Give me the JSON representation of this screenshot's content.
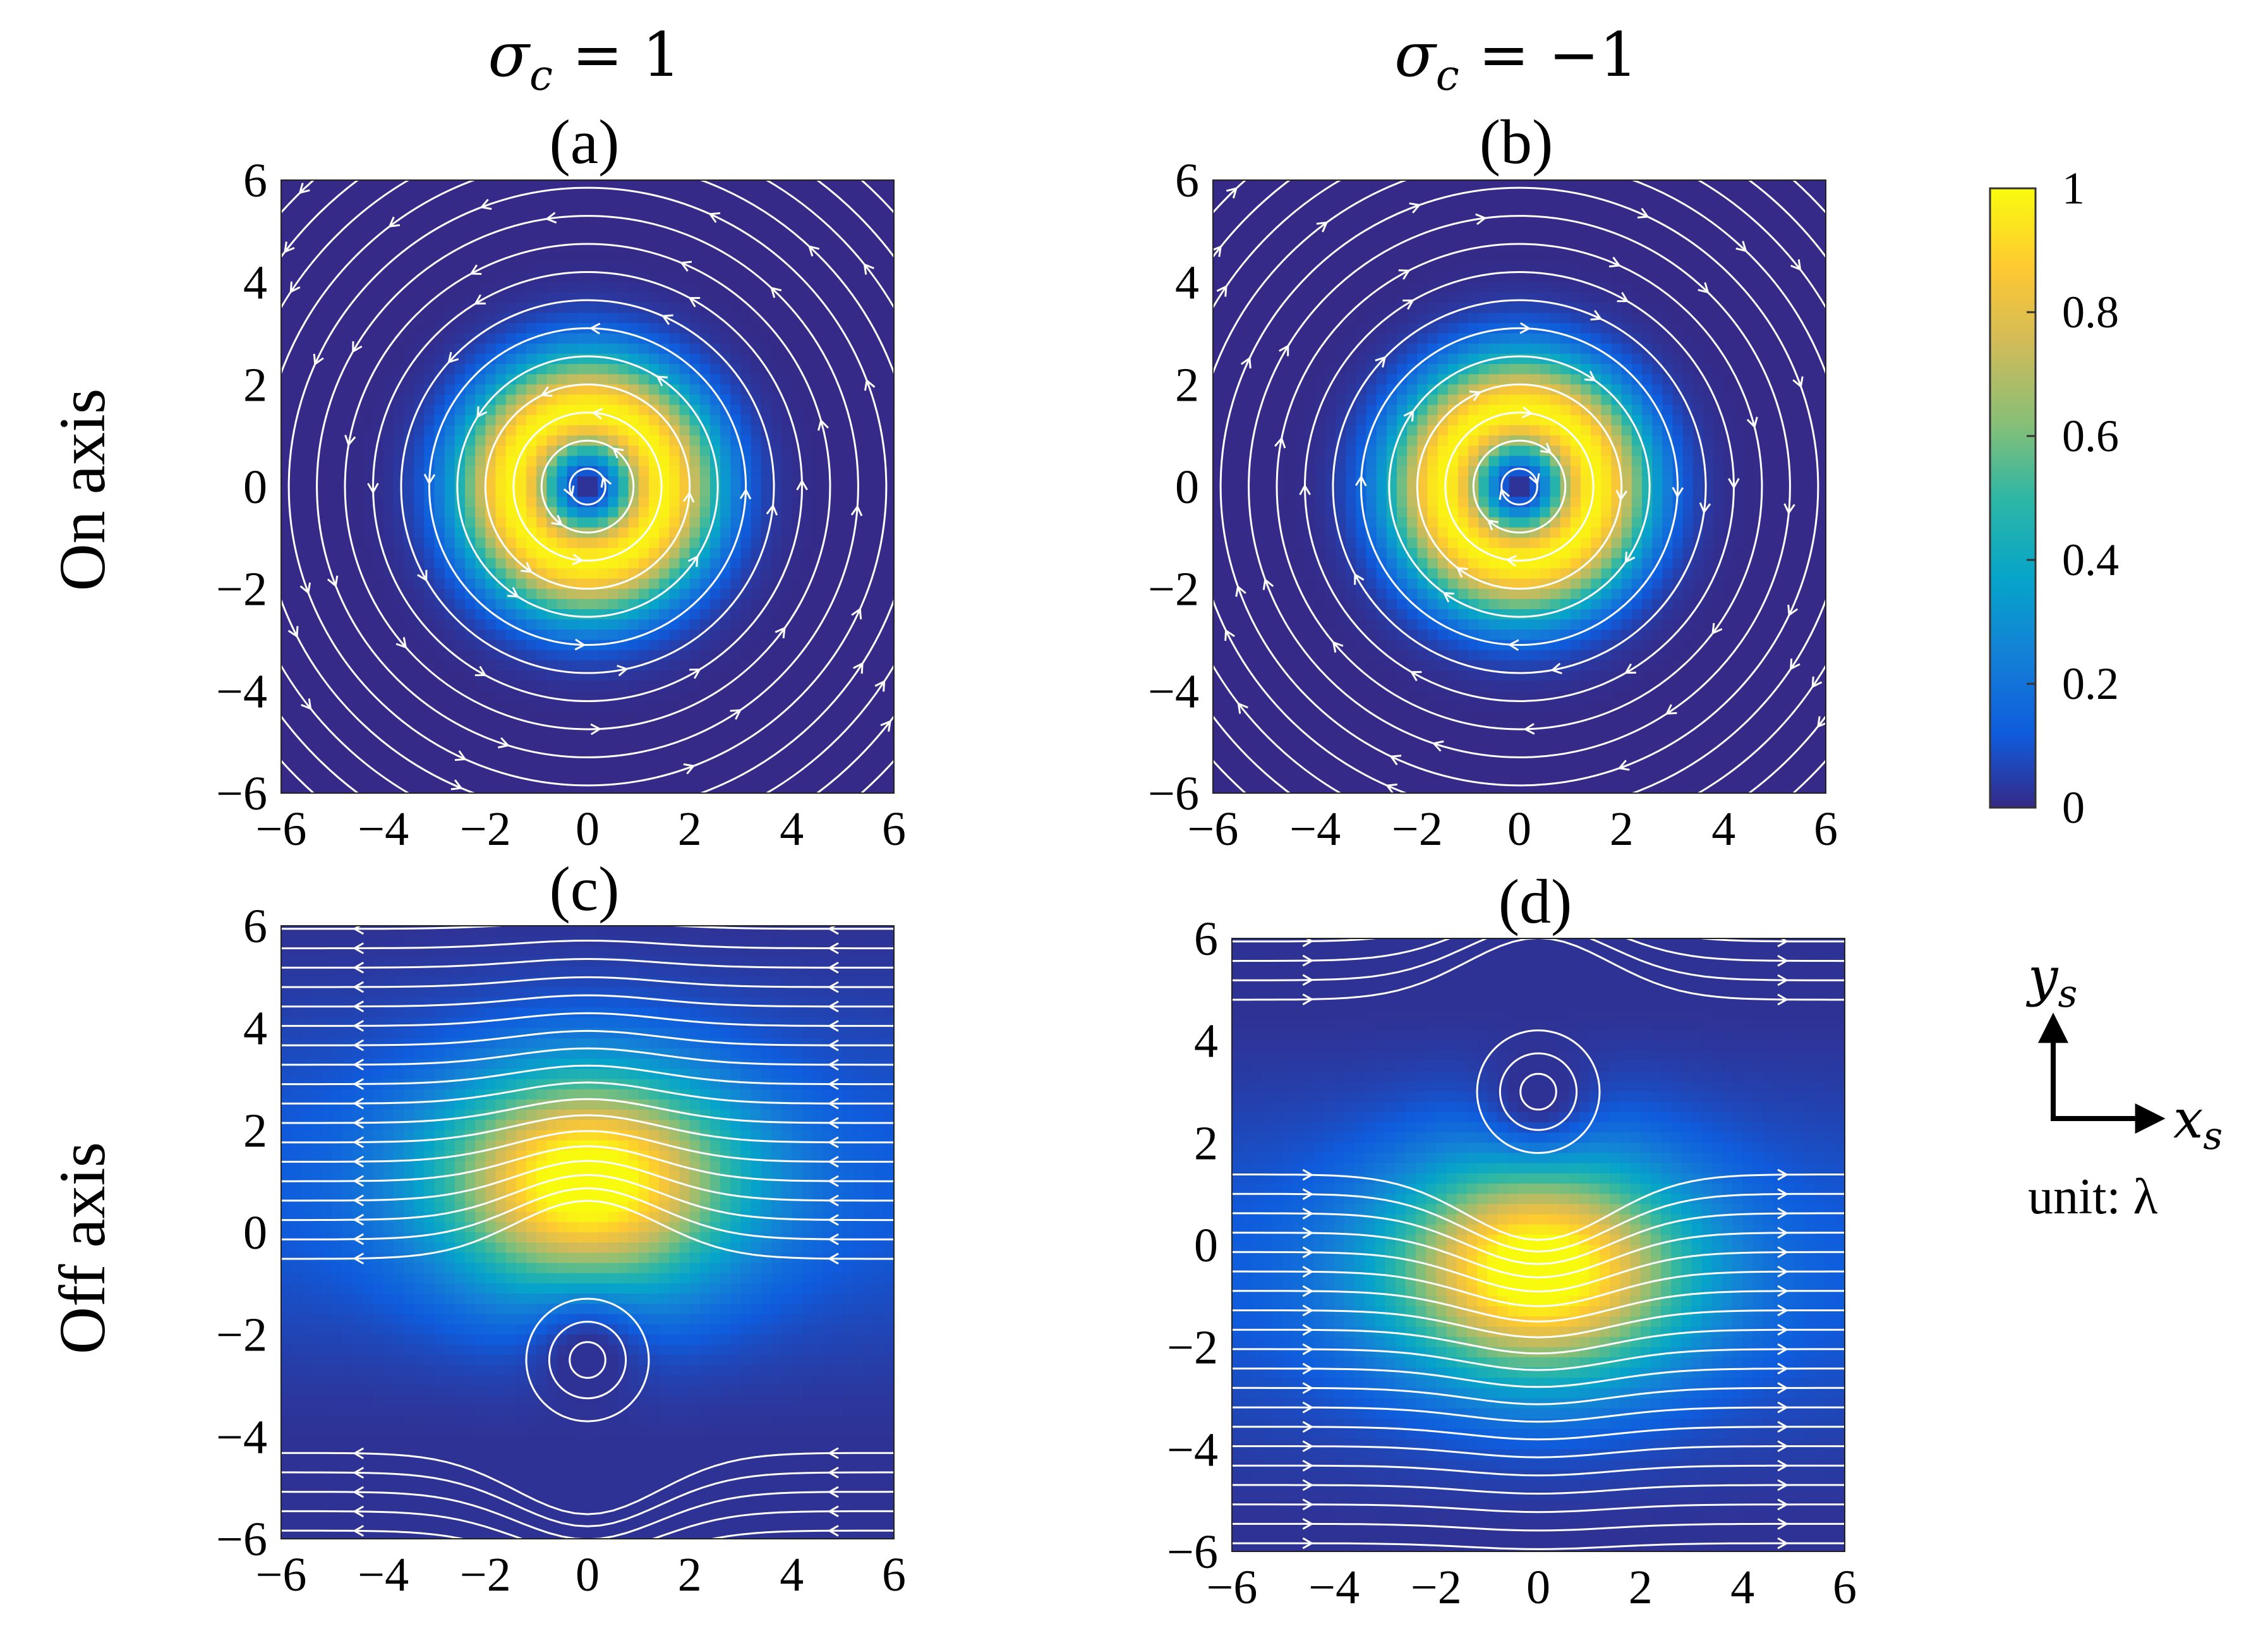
{
  "column_headers": [
    "σ c = 1",
    "σ c = −1"
  ],
  "column_header_parts": [
    {
      "symbol": "σ",
      "sub": "c",
      "rest": " = 1"
    },
    {
      "symbol": "σ",
      "sub": "c",
      "rest": " = −1"
    }
  ],
  "row_labels": [
    "On axis",
    "Off axis"
  ],
  "colorbar": {
    "range": [
      0,
      1
    ],
    "ticks": [
      "0",
      "0.2",
      "0.4",
      "0.6",
      "0.8",
      "1"
    ],
    "colormap": "parula",
    "colors": [
      "#352a87",
      "#0f5cdd",
      "#1481d6",
      "#06a4ca",
      "#2eb7a4",
      "#87bf77",
      "#d1bb59",
      "#fec832",
      "#f9fb0e"
    ]
  },
  "axis_legend": {
    "y_label": "y",
    "y_sub": "s",
    "x_label": "x",
    "x_sub": "s",
    "unit_text": "unit: λ"
  },
  "chart_data": [
    {
      "type": "heatmap",
      "panel": "(a)",
      "xlim": [
        -6,
        6
      ],
      "ylim": [
        -6,
        6
      ],
      "xticks": [
        "−6",
        "−4",
        "−2",
        "0",
        "2",
        "4",
        "6"
      ],
      "yticks": [
        "−6",
        "−4",
        "−2",
        "0",
        "2",
        "4",
        "6"
      ],
      "field": "ring",
      "intensity_peak_radius": 1.5,
      "intensity_max": 1,
      "vortex_centers": [
        [
          0,
          0
        ]
      ],
      "streamlines": "concentric circles",
      "circulation": "counterclockwise"
    },
    {
      "type": "heatmap",
      "panel": "(b)",
      "xlim": [
        -6,
        6
      ],
      "ylim": [
        -6,
        6
      ],
      "xticks": [
        "−6",
        "−4",
        "−2",
        "0",
        "2",
        "4",
        "6"
      ],
      "yticks": [
        "−6",
        "−4",
        "−2",
        "0",
        "2",
        "4",
        "6"
      ],
      "field": "ring",
      "intensity_peak_radius": 1.5,
      "intensity_max": 1,
      "vortex_centers": [
        [
          0,
          0
        ]
      ],
      "streamlines": "concentric circles",
      "circulation": "clockwise"
    },
    {
      "type": "heatmap",
      "panel": "(c)",
      "xlim": [
        -6,
        6
      ],
      "ylim": [
        -6,
        6
      ],
      "xticks": [
        "−6",
        "−4",
        "−2",
        "0",
        "2",
        "4",
        "6"
      ],
      "yticks": [
        "−6",
        "−4",
        "−2",
        "0",
        "2",
        "4",
        "6"
      ],
      "field": "off-axis",
      "intensity_peak_center": [
        0,
        1
      ],
      "intensity_max": 1,
      "vortex_centers": [
        [
          0,
          -2.5
        ]
      ],
      "streamlines": "horizontal flow with vortex",
      "flow_direction": "leftward"
    },
    {
      "type": "heatmap",
      "panel": "(d)",
      "xlim": [
        -6,
        6
      ],
      "ylim": [
        -6,
        6
      ],
      "xticks": [
        "−6",
        "−4",
        "−2",
        "0",
        "2",
        "4",
        "6"
      ],
      "yticks": [
        "−6",
        "−4",
        "−2",
        "0",
        "2",
        "4",
        "6"
      ],
      "field": "off-axis",
      "intensity_peak_center": [
        0,
        -0.5
      ],
      "intensity_max": 1,
      "vortex_centers": [
        [
          0,
          3
        ]
      ],
      "streamlines": "horizontal flow with vortex",
      "flow_direction": "rightward"
    }
  ]
}
